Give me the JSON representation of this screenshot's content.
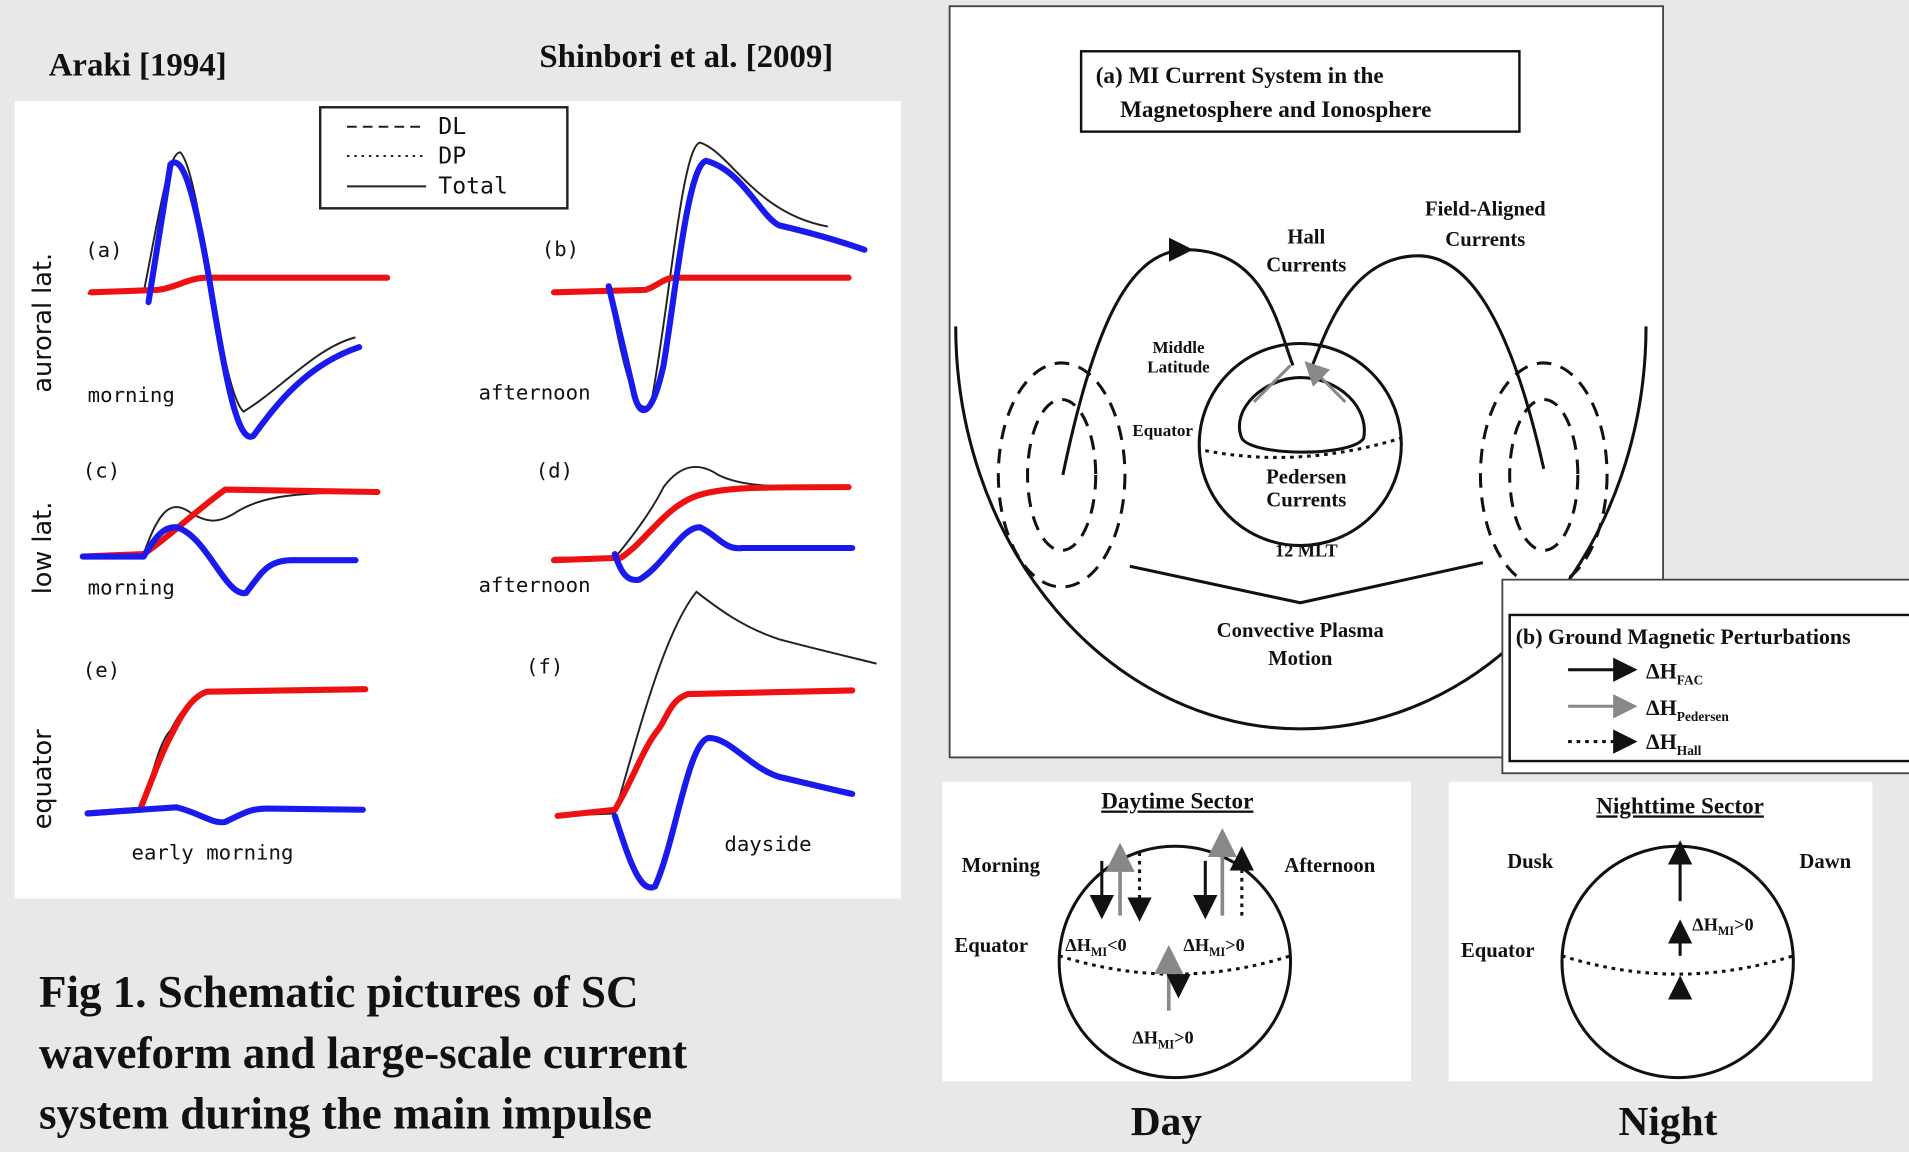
{
  "left_panel": {
    "author_left": "Araki [1994]",
    "author_right": "Shinbori et al. [2009]",
    "legend": [
      "DL",
      "DP",
      "Total"
    ],
    "row_labels": [
      "auroral lat.",
      "low lat.",
      "equator"
    ],
    "panels": [
      {
        "label": "(a)",
        "time": "morning"
      },
      {
        "label": "(b)",
        "time": "afternoon"
      },
      {
        "label": "(c)",
        "time": "morning"
      },
      {
        "label": "(d)",
        "time": "afternoon"
      },
      {
        "label": "(e)",
        "time": "early morning"
      },
      {
        "label": "(f)",
        "time": "dayside"
      }
    ]
  },
  "caption": [
    "Fig 1. Schematic pictures of SC",
    "waveform and large-scale current",
    "system during the main impulse"
  ],
  "diagram_a": {
    "title": [
      "(a) MI Current System in the",
      "Magnetosphere and Ionosphere"
    ],
    "hall": [
      "Hall",
      "Currents"
    ],
    "field_aligned": [
      "Field-Aligned",
      "Currents"
    ],
    "middle_latitude": [
      "Middle",
      "Latitude"
    ],
    "equator": "Equator",
    "pedersen": [
      "Pedersen",
      "Currents"
    ],
    "mlt": "12 MLT",
    "convective": [
      "Convective Plasma",
      "Motion"
    ]
  },
  "diagram_b": {
    "title": "(b) Ground Magnetic Perturbations",
    "items": [
      {
        "main": "ΔH",
        "sub": "FAC"
      },
      {
        "main": "ΔH",
        "sub": "Pedersen"
      },
      {
        "main": "ΔH",
        "sub": "Hall"
      }
    ]
  },
  "day": {
    "title": "Daytime Sector",
    "left": "Morning",
    "right": "Afternoon",
    "equator": "Equator",
    "labels": [
      {
        "main": "ΔH",
        "sub": "MI",
        "rest": "<0"
      },
      {
        "main": "ΔH",
        "sub": "MI",
        "rest": ">0"
      },
      {
        "main": "ΔH",
        "sub": "MI",
        "rest": ">0"
      }
    ],
    "caption": "Day"
  },
  "night": {
    "title": "Nighttime Sector",
    "left": "Dusk",
    "right": "Dawn",
    "equator": "Equator",
    "label": {
      "main": "ΔH",
      "sub": "MI",
      "rest": ">0"
    },
    "caption": "Night"
  }
}
